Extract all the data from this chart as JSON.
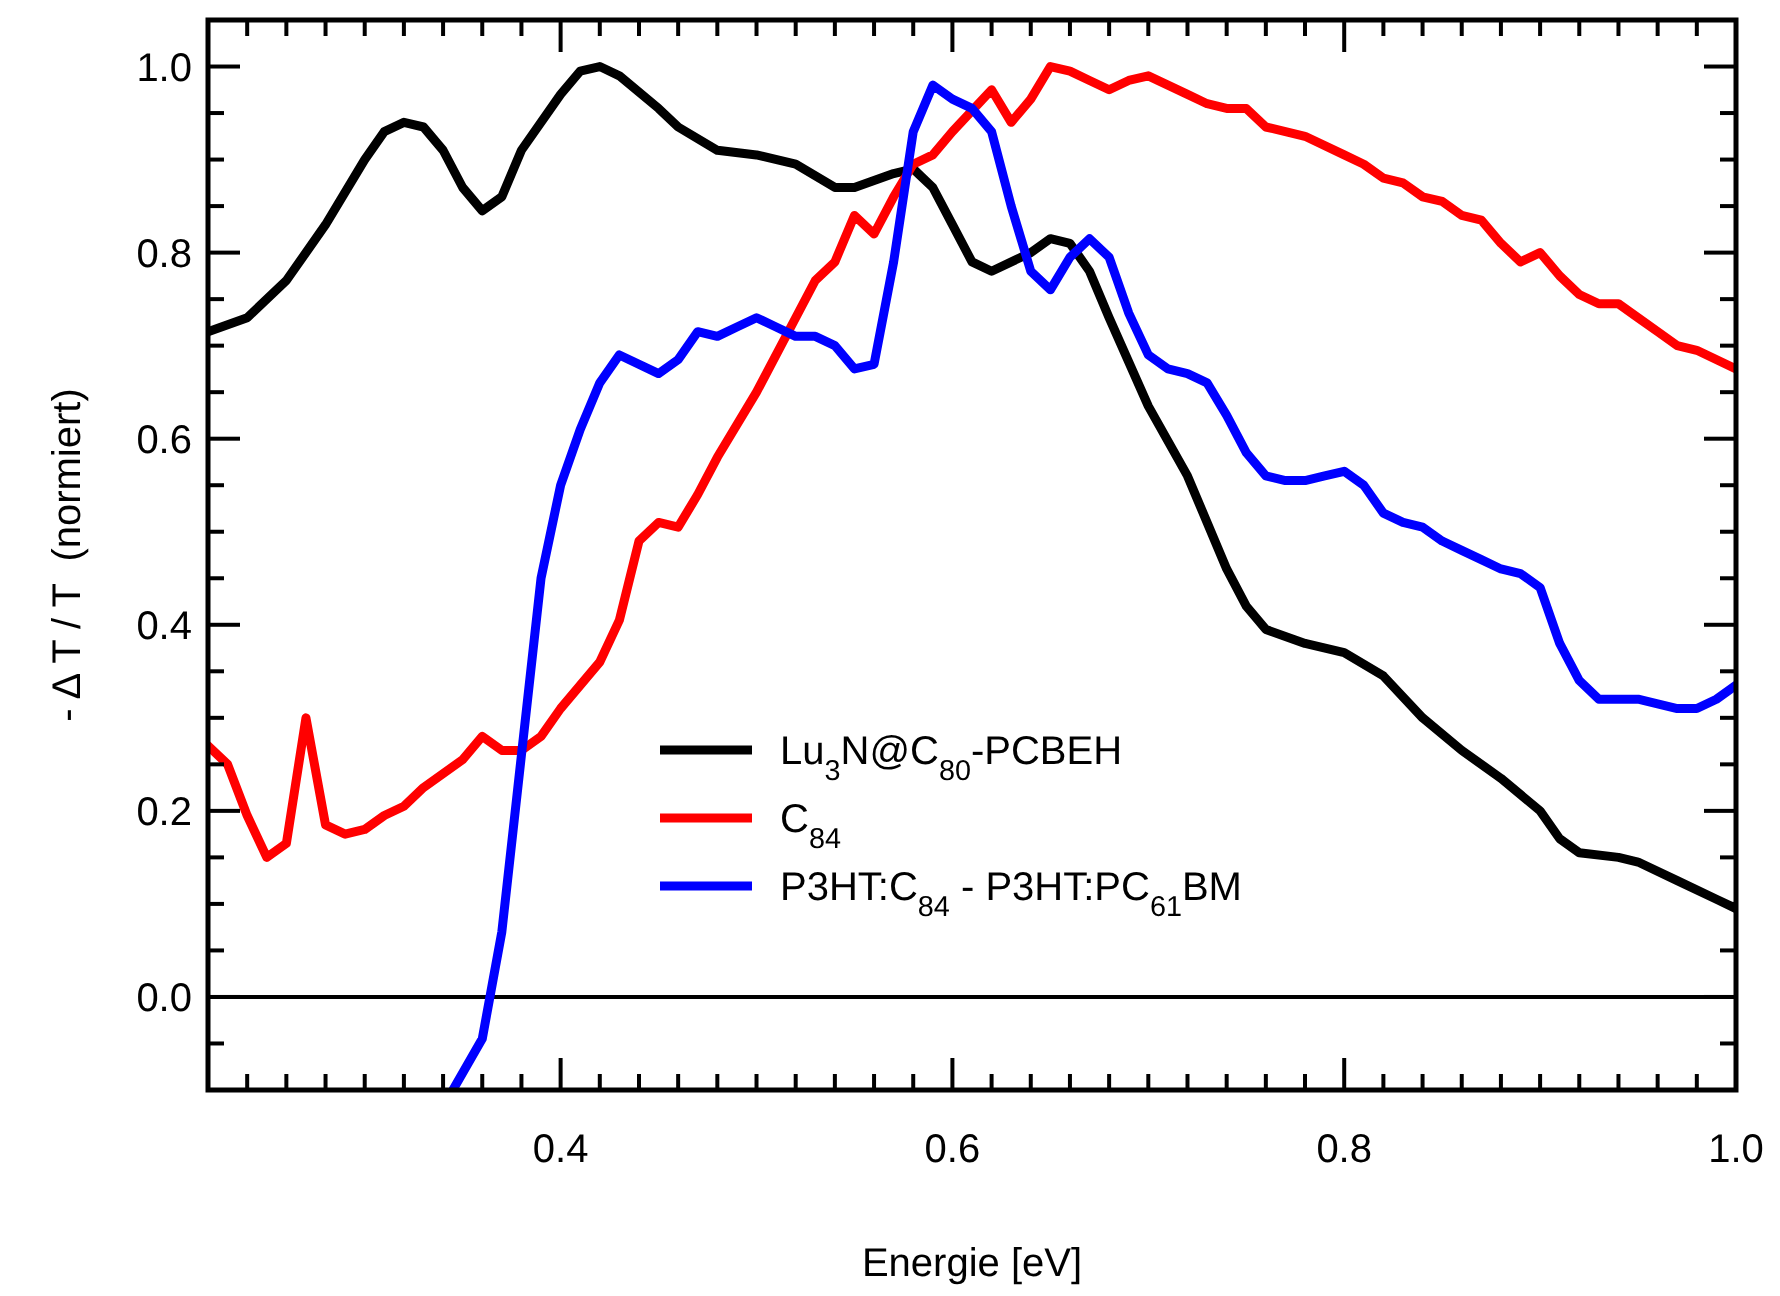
{
  "chart_data": {
    "type": "line",
    "xlabel": "Energie [eV]",
    "ylabel": "- Δ T / T  (normiert)",
    "xlim": [
      0.22,
      1.0
    ],
    "ylim": [
      -0.1,
      1.05
    ],
    "xticks": [
      {
        "value": 0.22,
        "label": null
      },
      {
        "value": 0.24,
        "label": null
      },
      {
        "value": 0.26,
        "label": null
      },
      {
        "value": 0.28,
        "label": null
      },
      {
        "value": 0.3,
        "label": null
      },
      {
        "value": 0.32,
        "label": null
      },
      {
        "value": 0.34,
        "label": null
      },
      {
        "value": 0.36,
        "label": null
      },
      {
        "value": 0.38,
        "label": null
      },
      0.4,
      {
        "value": 0.42,
        "label": null
      },
      {
        "value": 0.44,
        "label": null
      },
      {
        "value": 0.46,
        "label": null
      },
      {
        "value": 0.48,
        "label": null
      },
      {
        "value": 0.5,
        "label": null
      },
      {
        "value": 0.52,
        "label": null
      },
      {
        "value": 0.54,
        "label": null
      },
      {
        "value": 0.56,
        "label": null
      },
      {
        "value": 0.58,
        "label": null
      },
      0.6,
      {
        "value": 0.62,
        "label": null
      },
      {
        "value": 0.64,
        "label": null
      },
      {
        "value": 0.66,
        "label": null
      },
      {
        "value": 0.68,
        "label": null
      },
      {
        "value": 0.7,
        "label": null
      },
      {
        "value": 0.72,
        "label": null
      },
      {
        "value": 0.74,
        "label": null
      },
      {
        "value": 0.76,
        "label": null
      },
      {
        "value": 0.78,
        "label": null
      },
      0.8,
      {
        "value": 0.82,
        "label": null
      },
      {
        "value": 0.84,
        "label": null
      },
      {
        "value": 0.86,
        "label": null
      },
      {
        "value": 0.88,
        "label": null
      },
      {
        "value": 0.9,
        "label": null
      },
      {
        "value": 0.92,
        "label": null
      },
      {
        "value": 0.94,
        "label": null
      },
      {
        "value": 0.96,
        "label": null
      },
      {
        "value": 0.98,
        "label": null
      },
      {
        "value": 1.0,
        "label": "1.0"
      }
    ],
    "yticks": [
      {
        "value": -0.05,
        "label": null
      },
      {
        "value": 0,
        "label": "0.0"
      },
      {
        "value": 0.05,
        "label": null
      },
      {
        "value": 0.1,
        "label": null
      },
      {
        "value": 0.15,
        "label": null
      },
      0.2,
      {
        "value": 0.25,
        "label": null
      },
      {
        "value": 0.3,
        "label": null
      },
      {
        "value": 0.35,
        "label": null
      },
      0.4,
      {
        "value": 0.45,
        "label": null
      },
      {
        "value": 0.5,
        "label": null
      },
      {
        "value": 0.55,
        "label": null
      },
      0.6,
      {
        "value": 0.65,
        "label": null
      },
      {
        "value": 0.7,
        "label": null
      },
      {
        "value": 0.75,
        "label": null
      },
      0.8,
      {
        "value": 0.85,
        "label": null
      },
      {
        "value": 0.9,
        "label": null
      },
      {
        "value": 0.95,
        "label": null
      },
      {
        "value": 1.0,
        "label": "1.0"
      }
    ],
    "ref_lines": [
      {
        "axis": "y",
        "value": 0,
        "color": "#000000"
      }
    ],
    "legend": "bottom",
    "grid": false,
    "marker": "none",
    "line_style": "solid",
    "series": [
      {
        "name": "Lu$_{3}$N@C$_{80}$-PCBEH",
        "color": "#000000",
        "x": [
          0.22,
          0.24,
          0.26,
          0.28,
          0.3,
          0.31,
          0.32,
          0.33,
          0.34,
          0.35,
          0.36,
          0.37,
          0.38,
          0.4,
          0.41,
          0.42,
          0.43,
          0.45,
          0.46,
          0.48,
          0.5,
          0.52,
          0.54,
          0.55,
          0.57,
          0.58,
          0.59,
          0.6,
          0.61,
          0.62,
          0.64,
          0.65,
          0.66,
          0.67,
          0.68,
          0.7,
          0.72,
          0.74,
          0.75,
          0.76,
          0.78,
          0.8,
          0.82,
          0.84,
          0.86,
          0.88,
          0.9,
          0.91,
          0.92,
          0.94,
          0.95,
          0.97,
          0.99,
          1.0
        ],
        "values": [
          0.715,
          0.73,
          0.77,
          0.83,
          0.9,
          0.93,
          0.94,
          0.935,
          0.91,
          0.87,
          0.845,
          0.86,
          0.91,
          0.97,
          0.995,
          1.0,
          0.99,
          0.955,
          0.935,
          0.91,
          0.905,
          0.895,
          0.87,
          0.87,
          0.885,
          0.89,
          0.87,
          0.83,
          0.79,
          0.78,
          0.8,
          0.815,
          0.81,
          0.78,
          0.73,
          0.635,
          0.56,
          0.46,
          0.42,
          0.395,
          0.38,
          0.37,
          0.345,
          0.3,
          0.265,
          0.235,
          0.2,
          0.17,
          0.155,
          0.15,
          0.145,
          0.125,
          0.105,
          0.095
        ]
      },
      {
        "name": "C$_{84}$",
        "color": "#ff0000",
        "x": [
          0.22,
          0.23,
          0.24,
          0.25,
          0.26,
          0.27,
          0.28,
          0.29,
          0.3,
          0.31,
          0.32,
          0.33,
          0.34,
          0.35,
          0.36,
          0.37,
          0.38,
          0.39,
          0.4,
          0.41,
          0.42,
          0.43,
          0.44,
          0.45,
          0.46,
          0.47,
          0.48,
          0.5,
          0.52,
          0.53,
          0.54,
          0.55,
          0.56,
          0.57,
          0.58,
          0.59,
          0.6,
          0.62,
          0.63,
          0.64,
          0.65,
          0.66,
          0.67,
          0.68,
          0.69,
          0.7,
          0.71,
          0.72,
          0.73,
          0.74,
          0.75,
          0.76,
          0.78,
          0.8,
          0.81,
          0.82,
          0.83,
          0.84,
          0.85,
          0.86,
          0.87,
          0.88,
          0.89,
          0.9,
          0.91,
          0.92,
          0.93,
          0.94,
          0.95,
          0.96,
          0.97,
          0.98,
          1.0
        ],
        "values": [
          0.27,
          0.25,
          0.195,
          0.15,
          0.165,
          0.3,
          0.185,
          0.175,
          0.18,
          0.195,
          0.205,
          0.225,
          0.24,
          0.255,
          0.28,
          0.265,
          0.265,
          0.28,
          0.31,
          0.335,
          0.36,
          0.405,
          0.49,
          0.51,
          0.505,
          0.54,
          0.58,
          0.65,
          0.73,
          0.77,
          0.79,
          0.84,
          0.82,
          0.86,
          0.895,
          0.905,
          0.93,
          0.975,
          0.94,
          0.965,
          1.0,
          0.995,
          0.985,
          0.975,
          0.985,
          0.99,
          0.98,
          0.97,
          0.96,
          0.955,
          0.955,
          0.935,
          0.925,
          0.905,
          0.895,
          0.88,
          0.875,
          0.86,
          0.855,
          0.84,
          0.835,
          0.81,
          0.79,
          0.8,
          0.775,
          0.755,
          0.745,
          0.745,
          0.73,
          0.715,
          0.7,
          0.695,
          0.675
        ]
      },
      {
        "name": "P3HT:C$_{84}$ - P3HT:PC$_{61}$BM",
        "color": "#0000ff",
        "x": [
          0.345,
          0.36,
          0.37,
          0.38,
          0.39,
          0.4,
          0.41,
          0.42,
          0.43,
          0.45,
          0.46,
          0.47,
          0.48,
          0.49,
          0.5,
          0.51,
          0.52,
          0.53,
          0.54,
          0.55,
          0.56,
          0.57,
          0.58,
          0.59,
          0.6,
          0.61,
          0.62,
          0.63,
          0.64,
          0.65,
          0.66,
          0.67,
          0.68,
          0.69,
          0.7,
          0.71,
          0.72,
          0.73,
          0.74,
          0.75,
          0.76,
          0.77,
          0.78,
          0.79,
          0.8,
          0.81,
          0.82,
          0.83,
          0.84,
          0.85,
          0.86,
          0.87,
          0.88,
          0.89,
          0.9,
          0.91,
          0.92,
          0.93,
          0.95,
          0.97,
          0.98,
          0.99,
          1.0
        ],
        "values": [
          -0.1,
          -0.045,
          0.07,
          0.26,
          0.45,
          0.55,
          0.61,
          0.66,
          0.69,
          0.67,
          0.685,
          0.715,
          0.71,
          0.72,
          0.73,
          0.72,
          0.71,
          0.71,
          0.7,
          0.675,
          0.68,
          0.79,
          0.93,
          0.98,
          0.965,
          0.955,
          0.93,
          0.85,
          0.78,
          0.76,
          0.795,
          0.815,
          0.795,
          0.735,
          0.69,
          0.675,
          0.67,
          0.66,
          0.625,
          0.585,
          0.56,
          0.555,
          0.555,
          0.56,
          0.565,
          0.55,
          0.52,
          0.51,
          0.505,
          0.49,
          0.48,
          0.47,
          0.46,
          0.455,
          0.44,
          0.38,
          0.34,
          0.32,
          0.32,
          0.31,
          0.31,
          0.32,
          0.335
        ]
      }
    ]
  }
}
